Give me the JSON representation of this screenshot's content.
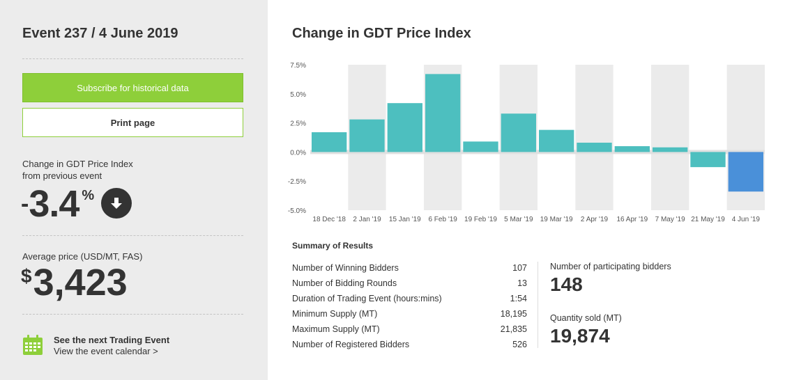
{
  "sidebar": {
    "event_title": "Event 237 / 4 June 2019",
    "subscribe_label": "Subscribe for historical data",
    "print_label": "Print page",
    "change_label_line1": "Change in GDT Price Index",
    "change_label_line2": "from previous event",
    "change_sign": "-",
    "change_value": "3.4",
    "change_unit": "%",
    "avg_price_label": "Average price (USD/MT, FAS)",
    "currency_symbol": "$",
    "avg_price_value": "3,423",
    "next_event_title": "See the next Trading Event",
    "next_event_link": "View the event calendar >"
  },
  "colors": {
    "accent_green": "#8ecf3a",
    "bar_positive": "#4dbfbf",
    "bar_latest": "#4a90d9",
    "panel_bg": "#ececec"
  },
  "icons": {
    "down_arrow": "arrow-down-circle-icon",
    "calendar": "calendar-icon"
  },
  "chart_data": {
    "type": "bar",
    "title": "Change in GDT Price Index",
    "categories": [
      "18 Dec '18",
      "2 Jan '19",
      "15 Jan '19",
      "6 Feb '19",
      "19 Feb '19",
      "5 Mar '19",
      "19 Mar '19",
      "2 Apr '19",
      "16 Apr '19",
      "7 May '19",
      "21 May '19",
      "4 Jun '19"
    ],
    "values": [
      1.7,
      2.8,
      4.2,
      6.7,
      0.9,
      3.3,
      1.9,
      0.8,
      0.5,
      0.4,
      -1.3,
      -3.4
    ],
    "y_ticks": [
      "7.5%",
      "5.0%",
      "2.5%",
      "0.0%",
      "-2.5%",
      "-5.0%"
    ],
    "y_tick_values": [
      7.5,
      5.0,
      2.5,
      0.0,
      -2.5,
      -5.0
    ],
    "ylim": [
      -5.0,
      7.5
    ],
    "grid": "alternating-column-bands"
  },
  "summary": {
    "title": "Summary of Results",
    "rows": [
      {
        "label": "Number of Winning Bidders",
        "value": "107"
      },
      {
        "label": "Number of Bidding Rounds",
        "value": "13"
      },
      {
        "label": "Duration of Trading Event (hours:mins)",
        "value": "1:54"
      },
      {
        "label": "Minimum Supply (MT)",
        "value": "18,195"
      },
      {
        "label": "Maximum Supply (MT)",
        "value": "21,835"
      },
      {
        "label": "Number of Registered Bidders",
        "value": "526"
      }
    ],
    "participating_label": "Number of participating bidders",
    "participating_value": "148",
    "quantity_label": "Quantity sold (MT)",
    "quantity_value": "19,874"
  }
}
